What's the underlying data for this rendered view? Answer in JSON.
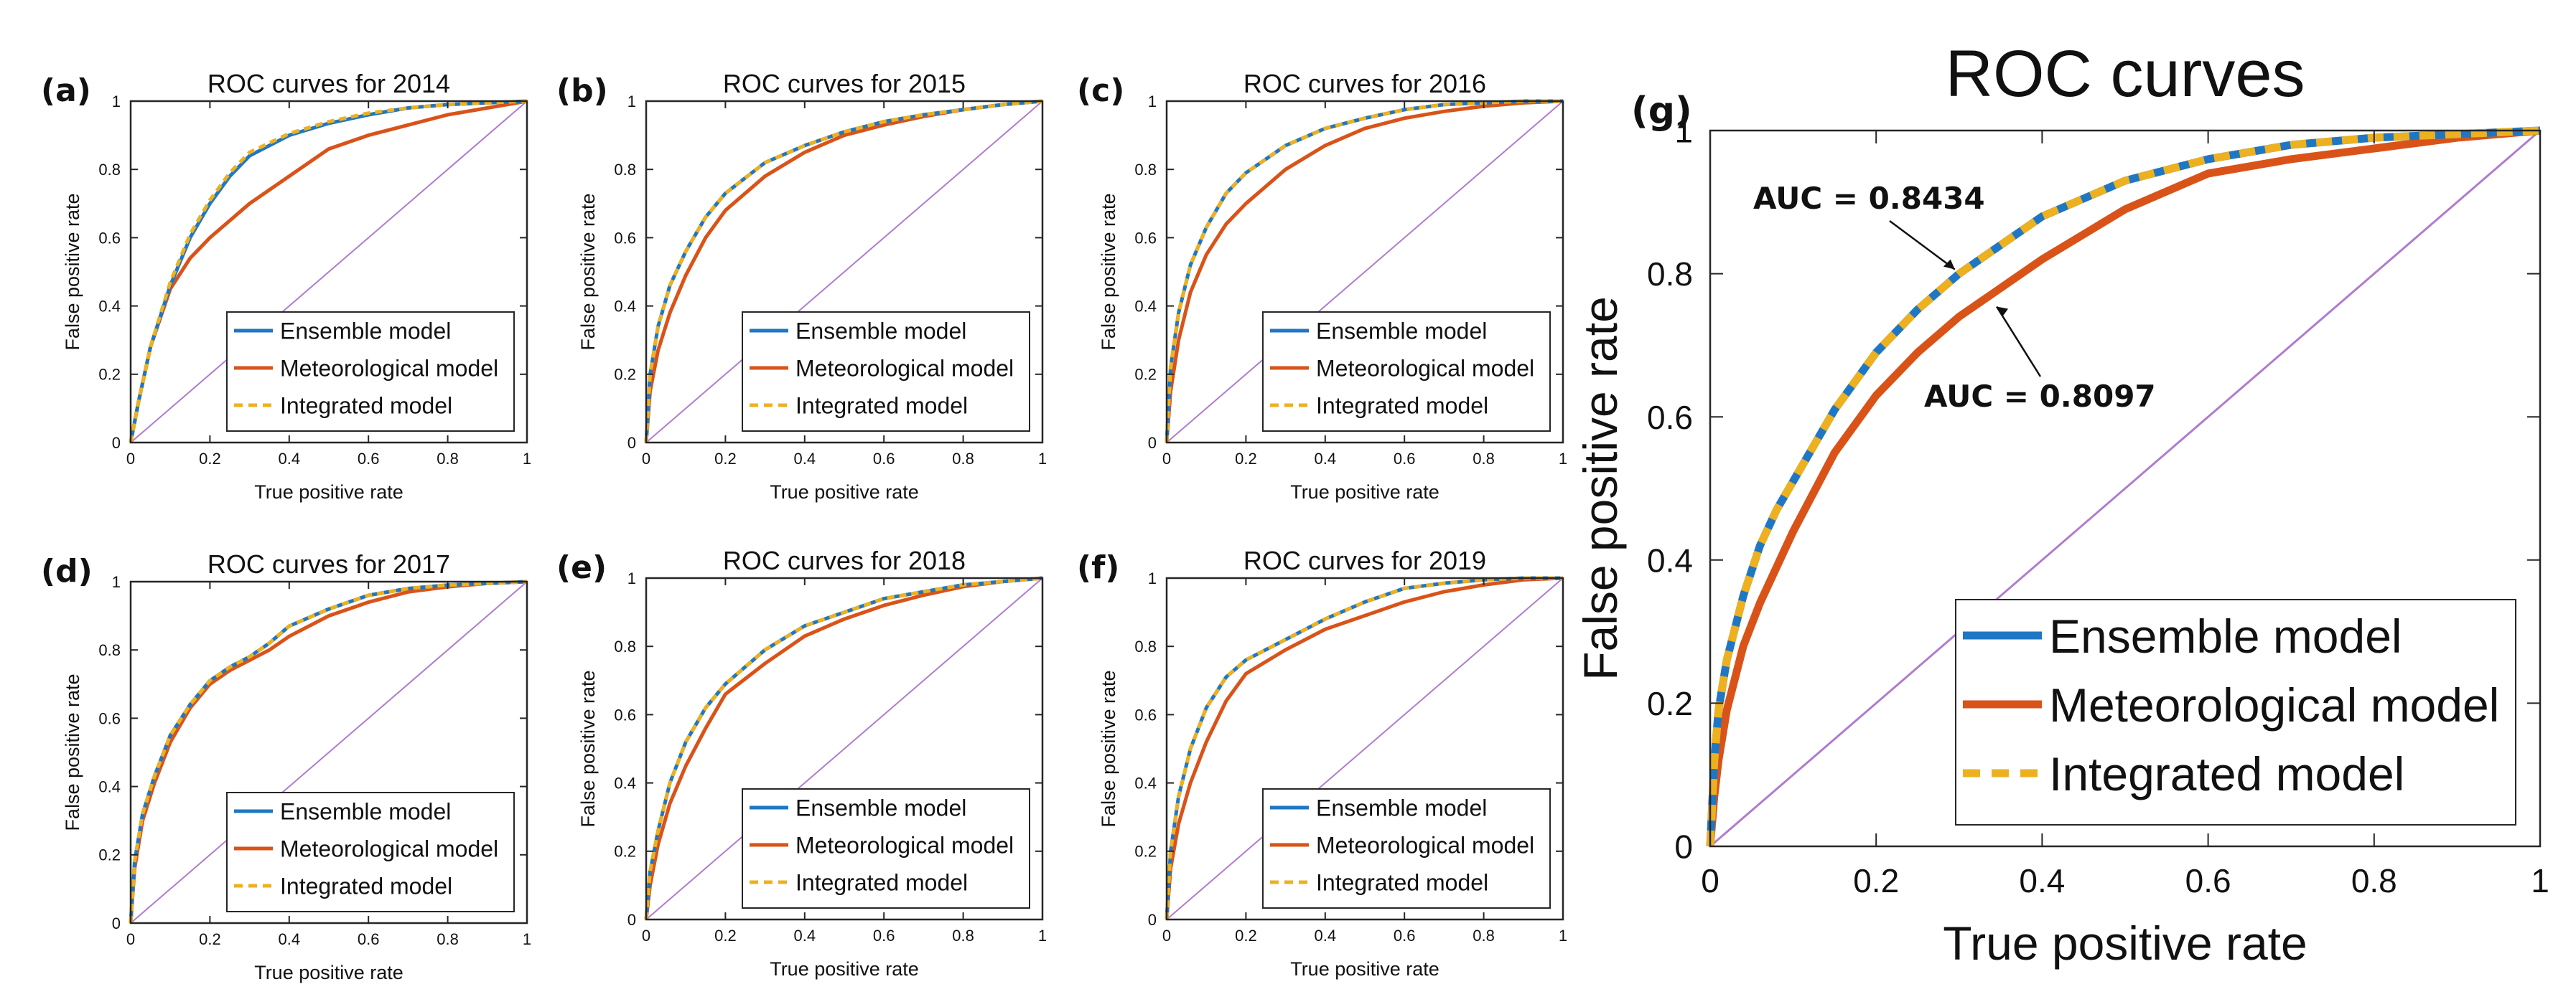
{
  "chart_data": [
    {
      "panel": "(a)",
      "type": "line",
      "title": "ROC curves for 2014",
      "xlabel": "True positive rate",
      "ylabel": "False positive rate",
      "xlim": [
        0,
        1
      ],
      "ylim": [
        0,
        1
      ],
      "xticks": [
        "0",
        "0.2",
        "0.4",
        "0.6",
        "0.8",
        "1"
      ],
      "yticks": [
        "0",
        "0.2",
        "0.4",
        "0.6",
        "0.8",
        "1"
      ],
      "legend_position": "bottom-right",
      "series": [
        {
          "name": "Ensemble model",
          "color": "#1f77c4",
          "x": [
            0,
            0.02,
            0.05,
            0.1,
            0.15,
            0.2,
            0.25,
            0.3,
            0.4,
            0.5,
            0.6,
            0.7,
            0.8,
            0.9,
            1
          ],
          "y": [
            0,
            0.12,
            0.28,
            0.46,
            0.6,
            0.7,
            0.78,
            0.84,
            0.9,
            0.935,
            0.96,
            0.98,
            0.99,
            0.995,
            1
          ]
        },
        {
          "name": "Meteorological model",
          "color": "#d95319",
          "x": [
            0,
            0.02,
            0.05,
            0.1,
            0.15,
            0.2,
            0.25,
            0.3,
            0.4,
            0.5,
            0.6,
            0.7,
            0.8,
            0.9,
            1
          ],
          "y": [
            0,
            0.12,
            0.28,
            0.45,
            0.54,
            0.6,
            0.65,
            0.7,
            0.78,
            0.86,
            0.9,
            0.93,
            0.96,
            0.98,
            1
          ]
        },
        {
          "name": "Integrated model",
          "color": "#edb120",
          "dashed": true,
          "x": [
            0,
            0.02,
            0.05,
            0.1,
            0.15,
            0.2,
            0.25,
            0.3,
            0.4,
            0.5,
            0.6,
            0.7,
            0.8,
            0.9,
            1
          ],
          "y": [
            0,
            0.12,
            0.28,
            0.47,
            0.61,
            0.71,
            0.79,
            0.85,
            0.905,
            0.94,
            0.965,
            0.98,
            0.99,
            0.995,
            1
          ]
        }
      ]
    },
    {
      "panel": "(b)",
      "type": "line",
      "title": "ROC curves for 2015",
      "xlabel": "True positive rate",
      "ylabel": "False positive rate",
      "xlim": [
        0,
        1
      ],
      "ylim": [
        0,
        1
      ],
      "xticks": [
        "0",
        "0.2",
        "0.4",
        "0.6",
        "0.8",
        "1"
      ],
      "yticks": [
        "0",
        "0.2",
        "0.4",
        "0.6",
        "0.8",
        "1"
      ],
      "legend_position": "bottom-right",
      "series": [
        {
          "name": "Ensemble model",
          "color": "#1f77c4",
          "x": [
            0,
            0.01,
            0.03,
            0.06,
            0.1,
            0.15,
            0.2,
            0.3,
            0.4,
            0.5,
            0.6,
            0.7,
            0.8,
            0.9,
            1
          ],
          "y": [
            0,
            0.2,
            0.34,
            0.46,
            0.56,
            0.66,
            0.73,
            0.82,
            0.87,
            0.91,
            0.94,
            0.96,
            0.975,
            0.99,
            1
          ]
        },
        {
          "name": "Meteorological model",
          "color": "#d95319",
          "x": [
            0,
            0.01,
            0.03,
            0.06,
            0.1,
            0.15,
            0.2,
            0.3,
            0.4,
            0.5,
            0.6,
            0.7,
            0.8,
            0.9,
            1
          ],
          "y": [
            0,
            0.15,
            0.27,
            0.38,
            0.49,
            0.6,
            0.68,
            0.78,
            0.85,
            0.9,
            0.93,
            0.955,
            0.975,
            0.99,
            1
          ]
        },
        {
          "name": "Integrated model",
          "color": "#edb120",
          "dashed": true,
          "x": [
            0,
            0.01,
            0.03,
            0.06,
            0.1,
            0.15,
            0.2,
            0.3,
            0.4,
            0.5,
            0.6,
            0.7,
            0.8,
            0.9,
            1
          ],
          "y": [
            0,
            0.2,
            0.34,
            0.46,
            0.56,
            0.66,
            0.73,
            0.82,
            0.87,
            0.91,
            0.94,
            0.96,
            0.975,
            0.99,
            1
          ]
        }
      ]
    },
    {
      "panel": "(c)",
      "type": "line",
      "title": "ROC curves for 2016",
      "xlabel": "True positive rate",
      "ylabel": "False positive rate",
      "xlim": [
        0,
        1
      ],
      "ylim": [
        0,
        1
      ],
      "xticks": [
        "0",
        "0.2",
        "0.4",
        "0.6",
        "0.8",
        "1"
      ],
      "yticks": [
        "0",
        "0.2",
        "0.4",
        "0.6",
        "0.8",
        "1"
      ],
      "legend_position": "bottom-right",
      "series": [
        {
          "name": "Ensemble model",
          "color": "#1f77c4",
          "x": [
            0,
            0.01,
            0.03,
            0.06,
            0.1,
            0.15,
            0.2,
            0.3,
            0.4,
            0.5,
            0.6,
            0.7,
            0.8,
            0.9,
            1
          ],
          "y": [
            0,
            0.22,
            0.38,
            0.52,
            0.63,
            0.73,
            0.79,
            0.87,
            0.92,
            0.95,
            0.975,
            0.99,
            0.995,
            1,
            1
          ]
        },
        {
          "name": "Meteorological model",
          "color": "#d95319",
          "x": [
            0,
            0.01,
            0.03,
            0.06,
            0.1,
            0.15,
            0.2,
            0.3,
            0.4,
            0.5,
            0.6,
            0.7,
            0.8,
            0.9,
            1
          ],
          "y": [
            0,
            0.15,
            0.3,
            0.44,
            0.55,
            0.64,
            0.7,
            0.8,
            0.87,
            0.92,
            0.95,
            0.97,
            0.985,
            0.995,
            1
          ]
        },
        {
          "name": "Integrated model",
          "color": "#edb120",
          "dashed": true,
          "x": [
            0,
            0.01,
            0.03,
            0.06,
            0.1,
            0.15,
            0.2,
            0.3,
            0.4,
            0.5,
            0.6,
            0.7,
            0.8,
            0.9,
            1
          ],
          "y": [
            0,
            0.22,
            0.38,
            0.52,
            0.63,
            0.73,
            0.79,
            0.87,
            0.92,
            0.95,
            0.975,
            0.99,
            0.995,
            1,
            1
          ]
        }
      ]
    },
    {
      "panel": "(d)",
      "type": "line",
      "title": "ROC curves for 2017",
      "xlabel": "True positive rate",
      "ylabel": "False positive rate",
      "xlim": [
        0,
        1
      ],
      "ylim": [
        0,
        1
      ],
      "xticks": [
        "0",
        "0.2",
        "0.4",
        "0.6",
        "0.8",
        "1"
      ],
      "yticks": [
        "0",
        "0.2",
        "0.4",
        "0.6",
        "0.8",
        "1"
      ],
      "legend_position": "bottom-right",
      "series": [
        {
          "name": "Ensemble model",
          "color": "#1f77c4",
          "x": [
            0,
            0.01,
            0.03,
            0.06,
            0.1,
            0.15,
            0.2,
            0.25,
            0.3,
            0.35,
            0.4,
            0.5,
            0.6,
            0.7,
            0.8,
            0.9,
            1
          ],
          "y": [
            0,
            0.18,
            0.32,
            0.43,
            0.55,
            0.64,
            0.71,
            0.75,
            0.78,
            0.82,
            0.87,
            0.92,
            0.96,
            0.98,
            0.99,
            0.995,
            1
          ]
        },
        {
          "name": "Meteorological model",
          "color": "#d95319",
          "x": [
            0,
            0.01,
            0.03,
            0.06,
            0.1,
            0.15,
            0.2,
            0.25,
            0.3,
            0.35,
            0.4,
            0.5,
            0.6,
            0.7,
            0.8,
            0.9,
            1
          ],
          "y": [
            0,
            0.16,
            0.3,
            0.41,
            0.53,
            0.63,
            0.7,
            0.74,
            0.77,
            0.8,
            0.84,
            0.9,
            0.94,
            0.97,
            0.985,
            0.995,
            1
          ]
        },
        {
          "name": "Integrated model",
          "color": "#edb120",
          "dashed": true,
          "x": [
            0,
            0.01,
            0.03,
            0.06,
            0.1,
            0.15,
            0.2,
            0.25,
            0.3,
            0.35,
            0.4,
            0.5,
            0.6,
            0.7,
            0.8,
            0.9,
            1
          ],
          "y": [
            0,
            0.18,
            0.32,
            0.43,
            0.55,
            0.64,
            0.71,
            0.75,
            0.78,
            0.82,
            0.87,
            0.92,
            0.96,
            0.98,
            0.99,
            0.995,
            1
          ]
        }
      ]
    },
    {
      "panel": "(e)",
      "type": "line",
      "title": "ROC curves for 2018",
      "xlabel": "True positive rate",
      "ylabel": "False positive rate",
      "xlim": [
        0,
        1
      ],
      "ylim": [
        0,
        1
      ],
      "xticks": [
        "0",
        "0.2",
        "0.4",
        "0.6",
        "0.8",
        "1"
      ],
      "yticks": [
        "0",
        "0.2",
        "0.4",
        "0.6",
        "0.8",
        "1"
      ],
      "legend_position": "bottom-right",
      "series": [
        {
          "name": "Ensemble model",
          "color": "#1f77c4",
          "x": [
            0,
            0.01,
            0.03,
            0.06,
            0.1,
            0.15,
            0.2,
            0.3,
            0.4,
            0.5,
            0.6,
            0.7,
            0.8,
            0.9,
            1
          ],
          "y": [
            0,
            0.14,
            0.26,
            0.4,
            0.52,
            0.62,
            0.69,
            0.79,
            0.86,
            0.9,
            0.94,
            0.96,
            0.98,
            0.99,
            1
          ]
        },
        {
          "name": "Meteorological model",
          "color": "#d95319",
          "x": [
            0,
            0.01,
            0.03,
            0.06,
            0.1,
            0.15,
            0.2,
            0.3,
            0.4,
            0.5,
            0.6,
            0.7,
            0.8,
            0.9,
            1
          ],
          "y": [
            0,
            0.1,
            0.22,
            0.34,
            0.45,
            0.56,
            0.66,
            0.75,
            0.83,
            0.88,
            0.92,
            0.95,
            0.975,
            0.99,
            1
          ]
        },
        {
          "name": "Integrated model",
          "color": "#edb120",
          "dashed": true,
          "x": [
            0,
            0.01,
            0.03,
            0.06,
            0.1,
            0.15,
            0.2,
            0.3,
            0.4,
            0.5,
            0.6,
            0.7,
            0.8,
            0.9,
            1
          ],
          "y": [
            0,
            0.14,
            0.26,
            0.4,
            0.52,
            0.62,
            0.69,
            0.79,
            0.86,
            0.9,
            0.94,
            0.96,
            0.98,
            0.99,
            1
          ]
        }
      ]
    },
    {
      "panel": "(f)",
      "type": "line",
      "title": "ROC curves for 2019",
      "xlabel": "True positive rate",
      "ylabel": "False positive rate",
      "xlim": [
        0,
        1
      ],
      "ylim": [
        0,
        1
      ],
      "xticks": [
        "0",
        "0.2",
        "0.4",
        "0.6",
        "0.8",
        "1"
      ],
      "yticks": [
        "0",
        "0.2",
        "0.4",
        "0.6",
        "0.8",
        "1"
      ],
      "legend_position": "bottom-right",
      "series": [
        {
          "name": "Ensemble model",
          "color": "#1f77c4",
          "x": [
            0,
            0.01,
            0.03,
            0.06,
            0.1,
            0.15,
            0.2,
            0.3,
            0.4,
            0.5,
            0.6,
            0.7,
            0.8,
            0.9,
            1
          ],
          "y": [
            0,
            0.2,
            0.36,
            0.5,
            0.62,
            0.71,
            0.76,
            0.82,
            0.88,
            0.93,
            0.97,
            0.985,
            0.995,
            1,
            1
          ]
        },
        {
          "name": "Meteorological model",
          "color": "#d95319",
          "x": [
            0,
            0.01,
            0.03,
            0.06,
            0.1,
            0.15,
            0.2,
            0.3,
            0.4,
            0.5,
            0.6,
            0.7,
            0.8,
            0.9,
            1
          ],
          "y": [
            0,
            0.15,
            0.28,
            0.4,
            0.52,
            0.64,
            0.72,
            0.79,
            0.85,
            0.89,
            0.93,
            0.96,
            0.98,
            0.995,
            1
          ]
        },
        {
          "name": "Integrated model",
          "color": "#edb120",
          "dashed": true,
          "x": [
            0,
            0.01,
            0.03,
            0.06,
            0.1,
            0.15,
            0.2,
            0.3,
            0.4,
            0.5,
            0.6,
            0.7,
            0.8,
            0.9,
            1
          ],
          "y": [
            0,
            0.2,
            0.36,
            0.5,
            0.62,
            0.71,
            0.76,
            0.82,
            0.88,
            0.93,
            0.97,
            0.985,
            0.995,
            1,
            1
          ]
        }
      ]
    },
    {
      "panel": "(g)",
      "type": "line",
      "title": "ROC curves",
      "xlabel": "True positive rate",
      "ylabel": "False positive rate",
      "xlim": [
        0,
        1
      ],
      "ylim": [
        0,
        1
      ],
      "xticks": [
        "0",
        "0.2",
        "0.4",
        "0.6",
        "0.8",
        "1"
      ],
      "yticks": [
        "0",
        "0.2",
        "0.4",
        "0.6",
        "0.8",
        "1"
      ],
      "legend_position": "bottom-right",
      "annotations": [
        {
          "text": "AUC = 0.8434",
          "points_to": [
            0.3,
            0.8
          ]
        },
        {
          "text": "AUC = 0.8097",
          "points_to": [
            0.34,
            0.76
          ]
        }
      ],
      "series": [
        {
          "name": "Ensemble model",
          "color": "#1f77c4",
          "x": [
            0,
            0.005,
            0.01,
            0.02,
            0.04,
            0.06,
            0.08,
            0.1,
            0.15,
            0.2,
            0.25,
            0.3,
            0.35,
            0.4,
            0.5,
            0.6,
            0.7,
            0.8,
            0.9,
            1
          ],
          "y": [
            0,
            0.12,
            0.19,
            0.26,
            0.35,
            0.42,
            0.47,
            0.51,
            0.61,
            0.69,
            0.75,
            0.8,
            0.84,
            0.88,
            0.93,
            0.96,
            0.98,
            0.99,
            0.995,
            1
          ]
        },
        {
          "name": "Meteorological model",
          "color": "#d95319",
          "x": [
            0,
            0.005,
            0.01,
            0.02,
            0.04,
            0.06,
            0.08,
            0.1,
            0.15,
            0.2,
            0.25,
            0.3,
            0.35,
            0.4,
            0.5,
            0.6,
            0.7,
            0.8,
            0.9,
            1
          ],
          "y": [
            0,
            0.07,
            0.12,
            0.19,
            0.28,
            0.34,
            0.39,
            0.44,
            0.55,
            0.63,
            0.69,
            0.74,
            0.78,
            0.82,
            0.89,
            0.94,
            0.96,
            0.975,
            0.99,
            1
          ]
        },
        {
          "name": "Integrated model",
          "color": "#edb120",
          "dashed": true,
          "x": [
            0,
            0.005,
            0.01,
            0.02,
            0.04,
            0.06,
            0.08,
            0.1,
            0.15,
            0.2,
            0.25,
            0.3,
            0.35,
            0.4,
            0.5,
            0.6,
            0.7,
            0.8,
            0.9,
            1
          ],
          "y": [
            0,
            0.12,
            0.19,
            0.26,
            0.35,
            0.42,
            0.47,
            0.51,
            0.61,
            0.69,
            0.75,
            0.8,
            0.84,
            0.88,
            0.93,
            0.96,
            0.98,
            0.99,
            0.995,
            1
          ]
        }
      ]
    }
  ]
}
